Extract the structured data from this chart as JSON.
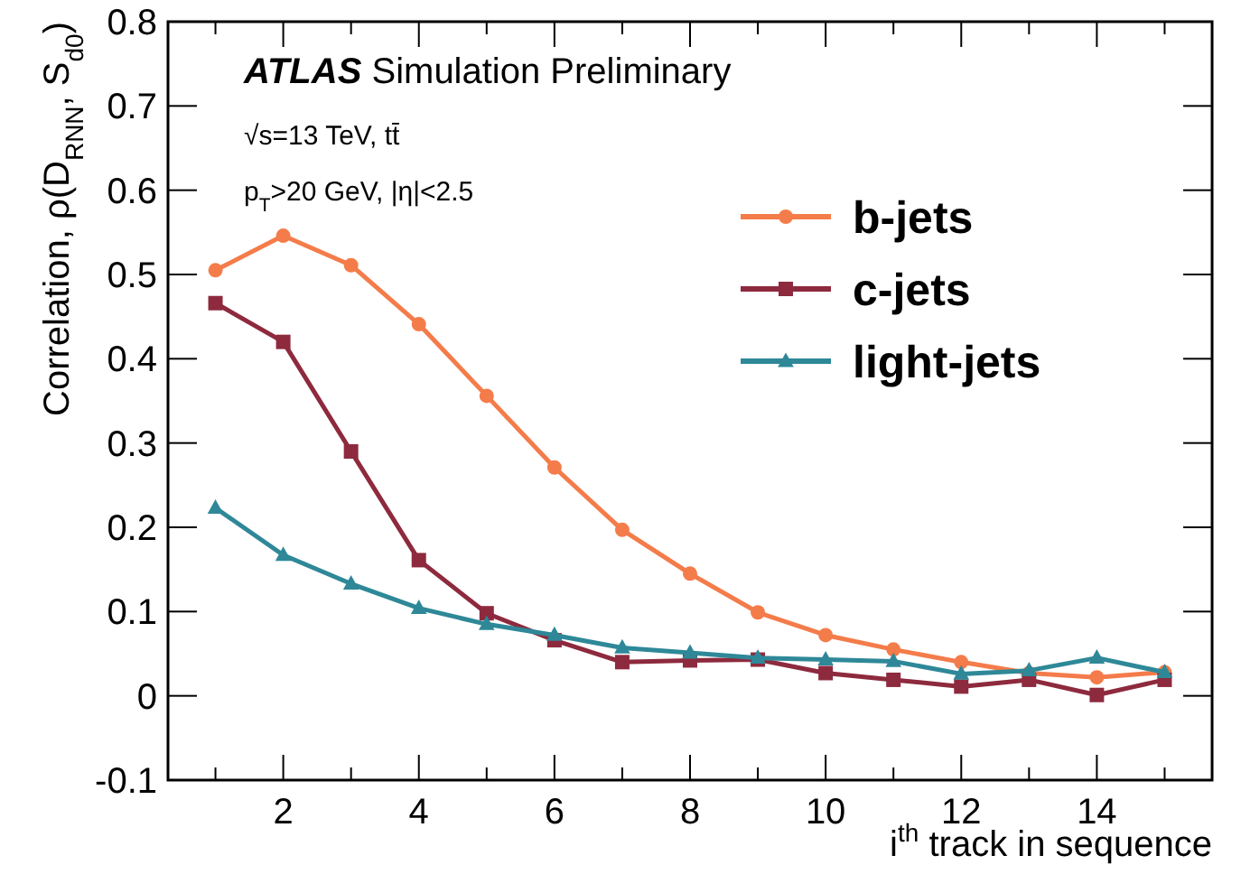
{
  "chart_data": {
    "type": "line",
    "xlabel": "i$^{th}$ track in sequence",
    "ylabel": "Correlation, ρ(D$_{RNN}$, S$_{d0}$)",
    "annotations": [
      "ATLAS Simulation Preliminary",
      "√s=13 TeV, tt̄",
      "p$_{T}$>20 GeV, |η|<2.5"
    ],
    "x": [
      1,
      2,
      3,
      4,
      5,
      6,
      7,
      8,
      9,
      10,
      11,
      12,
      13,
      14,
      15
    ],
    "xlim": [
      0.3,
      15.7
    ],
    "ylim": [
      -0.1,
      0.8
    ],
    "xticks": [
      {
        "value": 1,
        "label": null
      },
      2,
      {
        "value": 3,
        "label": null
      },
      4,
      {
        "value": 5,
        "label": null
      },
      6,
      {
        "value": 7,
        "label": null
      },
      8,
      {
        "value": 9,
        "label": null
      },
      10,
      {
        "value": 11,
        "label": null
      },
      12,
      {
        "value": 13,
        "label": null
      },
      14,
      {
        "value": 15,
        "label": null
      }
    ],
    "yticks": [
      -0.1,
      0,
      0.1,
      0.2,
      0.3,
      0.4,
      0.5,
      0.6,
      0.7,
      0.8
    ],
    "legend": "top right",
    "grid": false,
    "line_style": "solid",
    "series": [
      {
        "name": "b-jets",
        "color": "#f47c4a",
        "marker": "circle",
        "values": [
          0.505,
          0.546,
          0.511,
          0.441,
          0.356,
          0.271,
          0.197,
          0.145,
          0.099,
          0.072,
          0.055,
          0.04,
          0.027,
          0.022,
          0.028
        ]
      },
      {
        "name": "c-jets",
        "color": "#8e2a3e",
        "marker": "square",
        "values": [
          0.466,
          0.42,
          0.29,
          0.161,
          0.098,
          0.066,
          0.04,
          0.042,
          0.043,
          0.027,
          0.019,
          0.011,
          0.019,
          0.001,
          0.019
        ]
      },
      {
        "name": "light-jets",
        "color": "#2e8898",
        "marker": "triangle",
        "values": [
          0.223,
          0.167,
          0.133,
          0.104,
          0.085,
          0.072,
          0.057,
          0.051,
          0.045,
          0.043,
          0.041,
          0.026,
          0.03,
          0.045,
          0.028
        ]
      }
    ]
  }
}
